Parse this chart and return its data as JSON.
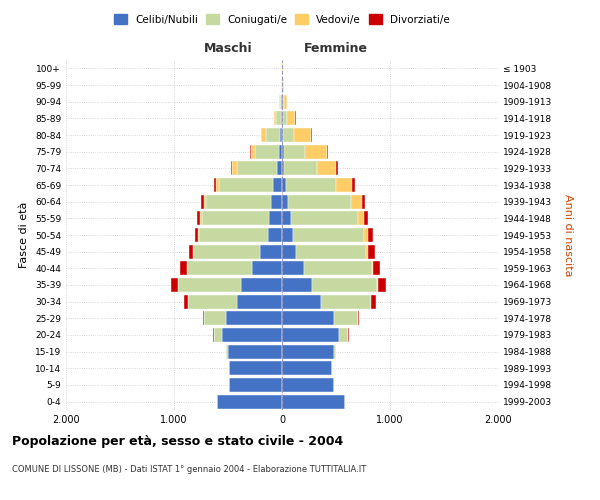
{
  "age_groups": [
    "0-4",
    "5-9",
    "10-14",
    "15-19",
    "20-24",
    "25-29",
    "30-34",
    "35-39",
    "40-44",
    "45-49",
    "50-54",
    "55-59",
    "60-64",
    "65-69",
    "70-74",
    "75-79",
    "80-84",
    "85-89",
    "90-94",
    "95-99",
    "100+"
  ],
  "birth_years": [
    "1999-2003",
    "1994-1998",
    "1989-1993",
    "1984-1988",
    "1979-1983",
    "1974-1978",
    "1969-1973",
    "1964-1968",
    "1959-1963",
    "1954-1958",
    "1949-1953",
    "1944-1948",
    "1939-1943",
    "1934-1938",
    "1929-1933",
    "1924-1928",
    "1919-1923",
    "1914-1918",
    "1909-1913",
    "1904-1908",
    "≤ 1903"
  ],
  "male_celibe": [
    600,
    490,
    490,
    500,
    560,
    520,
    420,
    380,
    280,
    200,
    130,
    120,
    100,
    80,
    50,
    30,
    20,
    10,
    5,
    3,
    2
  ],
  "male_coniugato": [
    1,
    2,
    5,
    20,
    70,
    200,
    450,
    580,
    600,
    620,
    640,
    620,
    600,
    500,
    370,
    220,
    130,
    50,
    15,
    4,
    2
  ],
  "male_vedovo": [
    0,
    0,
    0,
    0,
    0,
    1,
    1,
    2,
    3,
    5,
    10,
    15,
    20,
    30,
    40,
    40,
    40,
    15,
    5,
    1,
    0
  ],
  "male_divorziato": [
    0,
    0,
    0,
    2,
    5,
    10,
    40,
    70,
    60,
    40,
    30,
    35,
    30,
    20,
    15,
    10,
    5,
    2,
    0,
    0,
    0
  ],
  "female_celibe": [
    580,
    480,
    460,
    480,
    530,
    480,
    360,
    280,
    200,
    130,
    100,
    80,
    60,
    40,
    20,
    15,
    10,
    8,
    5,
    3,
    2
  ],
  "female_coniugata": [
    1,
    2,
    5,
    20,
    80,
    220,
    460,
    600,
    630,
    650,
    660,
    620,
    580,
    460,
    300,
    200,
    100,
    35,
    12,
    4,
    2
  ],
  "female_vedova": [
    0,
    0,
    0,
    0,
    1,
    2,
    3,
    5,
    10,
    20,
    40,
    60,
    100,
    150,
    180,
    200,
    160,
    80,
    30,
    8,
    2
  ],
  "female_divorziata": [
    0,
    0,
    0,
    2,
    5,
    15,
    50,
    80,
    70,
    60,
    40,
    40,
    30,
    25,
    20,
    10,
    5,
    3,
    1,
    0,
    0
  ],
  "colors": {
    "celibe": "#4472C4",
    "coniugato": "#c5d9a0",
    "vedovo": "#ffcc66",
    "divorziato": "#cc0000"
  },
  "title_main": "Popolazione per età, sesso e stato civile - 2004",
  "title_sub": "COMUNE DI LISSONE (MB) - Dati ISTAT 1° gennaio 2004 - Elaborazione TUTTITALIA.IT",
  "xlabel_left": "Maschi",
  "xlabel_right": "Femmine",
  "ylabel": "Fasce di età",
  "ylabel_right": "Anni di nascita",
  "xlim": 2000,
  "legend_labels": [
    "Celibi/Nubili",
    "Coniugati/e",
    "Vedovi/e",
    "Divorziati/e"
  ],
  "background_color": "#ffffff",
  "grid_color": "#cccccc"
}
